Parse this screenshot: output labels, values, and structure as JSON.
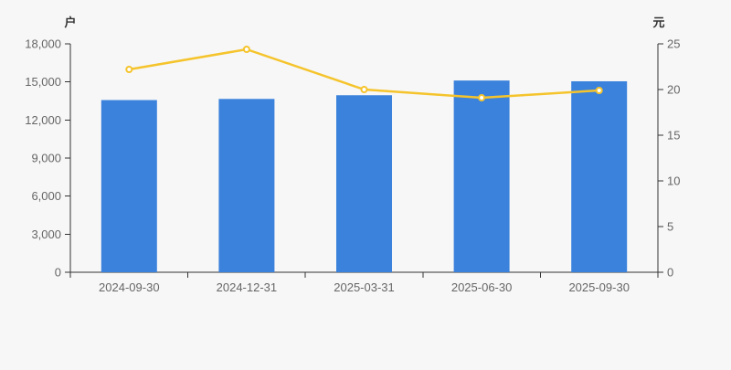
{
  "page": {
    "background_color": "#f7f7f7"
  },
  "chart_data": {
    "type": "combo",
    "categories": [
      "2024-09-30",
      "2024-12-31",
      "2025-03-31",
      "2025-06-30",
      "2025-09-30"
    ],
    "series": [
      {
        "type": "bar",
        "axis": "left",
        "color": "#3b82dc",
        "values": [
          13570,
          13660,
          13950,
          15110,
          15050
        ]
      },
      {
        "type": "line",
        "axis": "right",
        "color": "#f5c42c",
        "marker_fill": "#ffffff",
        "values": [
          22.2,
          24.4,
          20.0,
          19.1,
          19.9
        ]
      }
    ],
    "left_axis": {
      "title": "户",
      "min": 0,
      "max": 18000,
      "tick_interval": 3000,
      "tick_labels": [
        "0",
        "3,000",
        "6,000",
        "9,000",
        "12,000",
        "15,000",
        "18,000"
      ]
    },
    "right_axis": {
      "title": "元",
      "min": 0,
      "max": 25,
      "tick_interval": 5,
      "tick_labels": [
        "0",
        "5",
        "10",
        "15",
        "20",
        "25"
      ]
    },
    "legend": "none",
    "grid": "off",
    "axis_line_color": "#333333",
    "tick_label_color": "#666666"
  }
}
